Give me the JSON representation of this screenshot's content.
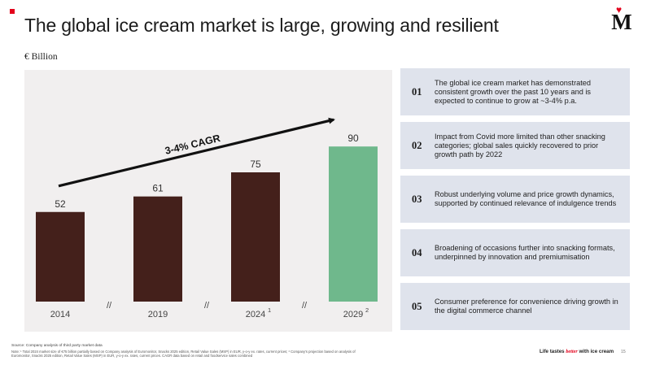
{
  "header": {
    "title": "The global ice cream market is large, growing and resilient",
    "logo_letter": "M",
    "logo_heart": "♥"
  },
  "chart_data": {
    "type": "bar",
    "unit_label": "€ Billion",
    "categories": [
      "2014",
      "2019",
      "2024",
      "2029"
    ],
    "category_superscripts": [
      "",
      "",
      "1",
      "2"
    ],
    "values": [
      52,
      61,
      75,
      90
    ],
    "bar_colors": [
      "#44201b",
      "#44201b",
      "#44201b",
      "#6fb88c"
    ],
    "ylim": [
      0,
      100
    ],
    "axis_break_marker": "//",
    "annotation": "3-4% CAGR",
    "background_color": "#f1efef"
  },
  "points": [
    {
      "num": "01",
      "text": "The global ice cream market has demonstrated consistent growth over the past 10 years and is expected to continue to grow at ~3-4% p.a."
    },
    {
      "num": "02",
      "text": "Impact from Covid more limited than other snacking categories; global sales quickly recovered to prior growth path by 2022"
    },
    {
      "num": "03",
      "text": "Robust underlying volume and price growth dynamics, supported by continued relevance of indulgence trends"
    },
    {
      "num": "04",
      "text": "Broadening of occasions further into snacking formats, underpinned by innovation and premiumisation"
    },
    {
      "num": "05",
      "text": "Consumer preference for convenience driving growth in the digital commerce channel"
    }
  ],
  "footer": {
    "source": "Source: Company analysis of third party market data",
    "note": "Note: ¹ Total 2024 market size of €75 billion partially based on Company analysis of Euromonitor, Snacks 2025 edition, Retail Value Sales (MSP) in EUR, y-o-y ex. rates, current prices; ² Company's projection based on analysis of Euromonitor, Snacks 2025 edition, Retail Value Sales (MSP) in EUR, y-o-y ex. rates, current prices. CAGR data based on retail and foodservice sales combined",
    "tagline_before": "Life tastes ",
    "tagline_emphasis": "better",
    "tagline_after": " with ice cream",
    "page_number": "15"
  },
  "colors": {
    "accent": "#e3001b",
    "bar_brown": "#44201b",
    "bar_green": "#6fb88c",
    "card_bg": "#dfe3ec"
  }
}
